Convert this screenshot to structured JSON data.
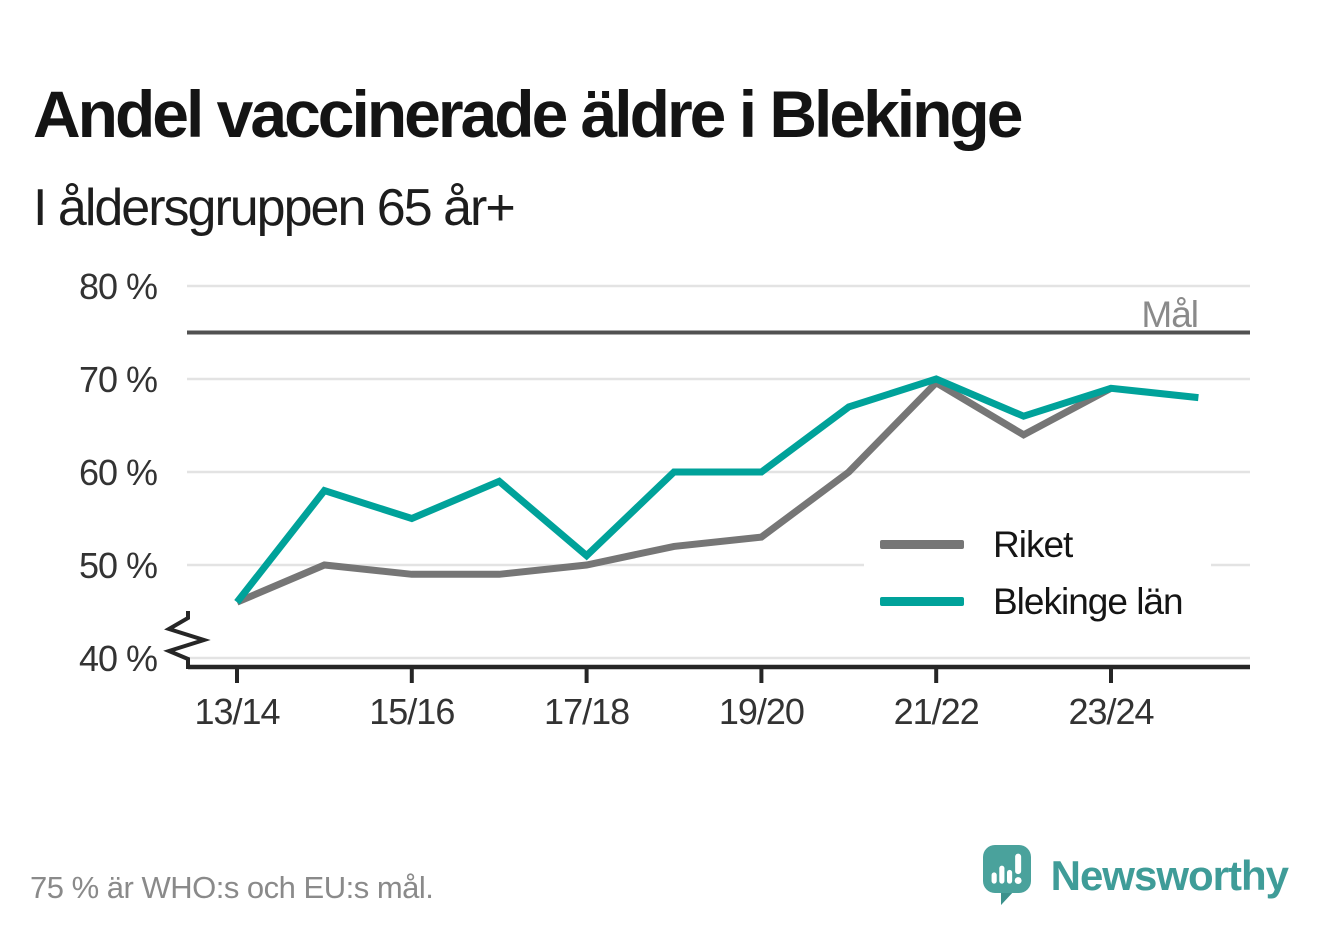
{
  "title": "Andel vaccinerade äldre i Blekinge",
  "subtitle": "I åldersgruppen 65 år+",
  "footer_note": "75 % är WHO:s och EU:s mål.",
  "goal": {
    "label": "Mål",
    "value": 75
  },
  "legend": [
    {
      "label": "Riket",
      "color": "#767676"
    },
    {
      "label": "Blekinge län",
      "color": "#00a29a"
    }
  ],
  "brand": {
    "name": "Newsworthy",
    "icon": "speech-bubble-bar-chart-icon"
  },
  "chart_data": {
    "type": "line",
    "title": "Andel vaccinerade äldre i Blekinge",
    "subtitle": "I åldersgruppen 65 år+",
    "x": [
      "13/14",
      "14/15",
      "15/16",
      "16/17",
      "17/18",
      "18/19",
      "19/20",
      "20/21",
      "21/22",
      "22/23",
      "23/24",
      "24/25"
    ],
    "xtick_labels": [
      "13/14",
      "15/16",
      "17/18",
      "19/20",
      "21/22",
      "23/24"
    ],
    "yticks": [
      {
        "label": "80 %",
        "value": 80
      },
      {
        "label": "70 %",
        "value": 70
      },
      {
        "label": "60 %",
        "value": 60
      },
      {
        "label": "50 %",
        "value": 50
      },
      {
        "label": "40 %",
        "value": 40
      }
    ],
    "ylim": [
      40,
      80
    ],
    "axis_break_at_bottom": true,
    "grid": true,
    "legend_position": "inside-right",
    "goal_line": {
      "value": 75,
      "label": "Mål"
    },
    "series": [
      {
        "name": "Riket",
        "color": "#767676",
        "values": [
          46,
          50,
          49,
          49,
          50,
          52,
          53,
          60,
          69.6,
          64,
          69,
          null
        ]
      },
      {
        "name": "Blekinge län",
        "color": "#00a29a",
        "values": [
          46,
          58,
          55,
          59,
          51,
          60,
          60,
          67,
          70,
          66,
          69,
          68
        ]
      }
    ]
  }
}
